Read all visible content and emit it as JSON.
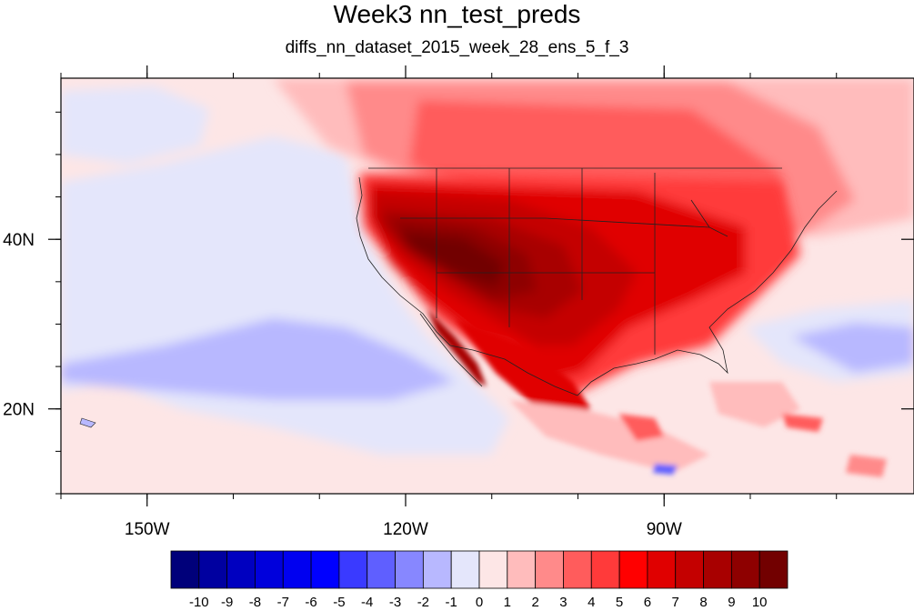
{
  "title": "Week3 nn_test_preds",
  "subtitle": "diffs_nn_dataset_2015_week_28_ens_5_f_3",
  "map": {
    "lon_range": [
      -160,
      -61
    ],
    "lat_range": [
      10,
      59
    ],
    "x_ticks": [
      {
        "value": -150,
        "label": "150W"
      },
      {
        "value": -120,
        "label": "120W"
      },
      {
        "value": -90,
        "label": "90W"
      }
    ],
    "y_ticks": [
      {
        "value": 40,
        "label": "40N"
      },
      {
        "value": 20,
        "label": "20N"
      }
    ]
  },
  "colorbar": {
    "labels": [
      "-10",
      "-9",
      "-8",
      "-7",
      "-6",
      "-5",
      "-4",
      "-3",
      "-2",
      "-1",
      "0",
      "1",
      "2",
      "3",
      "4",
      "5",
      "6",
      "7",
      "8",
      "9",
      "10"
    ],
    "colors": [
      "#00007a",
      "#0000a0",
      "#0000c0",
      "#0000dc",
      "#0000f0",
      "#0000ff",
      "#3a3aff",
      "#5f5fff",
      "#8787ff",
      "#b8b8ff",
      "#e4e6fb",
      "#fde6e6",
      "#ffbcbc",
      "#ff8a8a",
      "#ff5c5c",
      "#ff3a3a",
      "#ff0000",
      "#e00000",
      "#c40000",
      "#a80000",
      "#8e0000",
      "#720000"
    ]
  }
}
